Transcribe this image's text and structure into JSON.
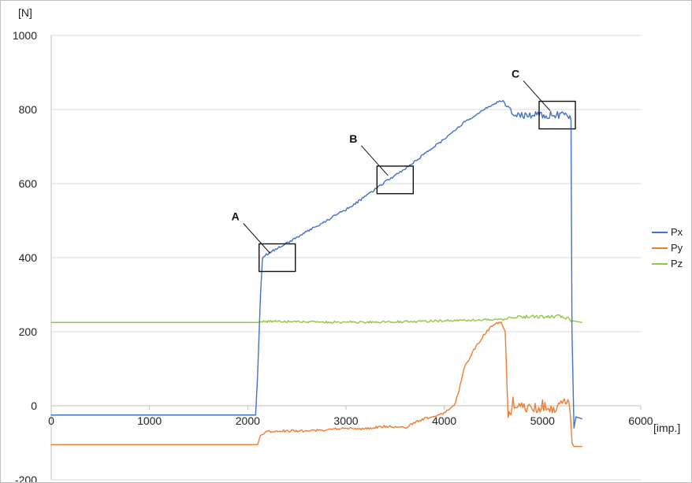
{
  "chart_data": {
    "type": "line",
    "title": "",
    "xlabel": "[imp.]",
    "ylabel": "[N]",
    "xlim": [
      0,
      6000
    ],
    "ylim": [
      -200,
      1000
    ],
    "xticks": [
      0,
      1000,
      2000,
      3000,
      4000,
      5000,
      6000
    ],
    "yticks": [
      -200,
      0,
      200,
      400,
      600,
      800,
      1000
    ],
    "grid": true,
    "legend_position": "right",
    "series": [
      {
        "name": "Px",
        "color": "#4472c4",
        "points": [
          [
            0,
            -25
          ],
          [
            2080,
            -25
          ],
          [
            2100,
            80
          ],
          [
            2130,
            300
          ],
          [
            2150,
            400
          ],
          [
            2200,
            410
          ],
          [
            2400,
            440
          ],
          [
            2600,
            470
          ],
          [
            2800,
            500
          ],
          [
            3000,
            530
          ],
          [
            3200,
            565
          ],
          [
            3400,
            605
          ],
          [
            3600,
            640
          ],
          [
            3800,
            680
          ],
          [
            4000,
            720
          ],
          [
            4200,
            765
          ],
          [
            4400,
            800
          ],
          [
            4500,
            815
          ],
          [
            4600,
            825
          ],
          [
            4650,
            800
          ],
          [
            4700,
            790
          ],
          [
            4800,
            785
          ],
          [
            5000,
            785
          ],
          [
            5200,
            785
          ],
          [
            5290,
            780
          ],
          [
            5300,
            200
          ],
          [
            5320,
            -60
          ],
          [
            5340,
            -30
          ],
          [
            5400,
            -35
          ]
        ]
      },
      {
        "name": "Py",
        "color": "#ed7d31",
        "points": [
          [
            0,
            -105
          ],
          [
            2100,
            -105
          ],
          [
            2130,
            -80
          ],
          [
            2200,
            -70
          ],
          [
            2400,
            -68
          ],
          [
            2600,
            -68
          ],
          [
            2800,
            -65
          ],
          [
            3000,
            -60
          ],
          [
            3200,
            -62
          ],
          [
            3400,
            -55
          ],
          [
            3600,
            -60
          ],
          [
            3700,
            -45
          ],
          [
            3800,
            -35
          ],
          [
            3900,
            -30
          ],
          [
            4000,
            -20
          ],
          [
            4100,
            0
          ],
          [
            4150,
            40
          ],
          [
            4200,
            100
          ],
          [
            4300,
            150
          ],
          [
            4400,
            190
          ],
          [
            4500,
            220
          ],
          [
            4580,
            225
          ],
          [
            4620,
            200
          ],
          [
            4650,
            -30
          ],
          [
            4670,
            -20
          ],
          [
            4700,
            10
          ],
          [
            4800,
            0
          ],
          [
            4900,
            -10
          ],
          [
            5000,
            0
          ],
          [
            5100,
            -5
          ],
          [
            5200,
            5
          ],
          [
            5280,
            0
          ],
          [
            5300,
            -100
          ],
          [
            5320,
            -110
          ],
          [
            5400,
            -110
          ]
        ]
      },
      {
        "name": "Pz",
        "color": "#8fc941",
        "points": [
          [
            0,
            225
          ],
          [
            2100,
            225
          ],
          [
            2150,
            228
          ],
          [
            2400,
            228
          ],
          [
            2600,
            227
          ],
          [
            2800,
            226
          ],
          [
            3000,
            226
          ],
          [
            3200,
            226
          ],
          [
            3400,
            227
          ],
          [
            3600,
            227
          ],
          [
            3800,
            228
          ],
          [
            4000,
            230
          ],
          [
            4200,
            231
          ],
          [
            4400,
            232
          ],
          [
            4600,
            233
          ],
          [
            4700,
            240
          ],
          [
            4800,
            240
          ],
          [
            5000,
            240
          ],
          [
            5200,
            242
          ],
          [
            5300,
            230
          ],
          [
            5400,
            225
          ]
        ]
      }
    ],
    "annotations": [
      {
        "label": "A",
        "x": 2300,
        "y": 400
      },
      {
        "label": "B",
        "x": 3500,
        "y": 610
      },
      {
        "label": "C",
        "x": 5150,
        "y": 785
      }
    ]
  }
}
